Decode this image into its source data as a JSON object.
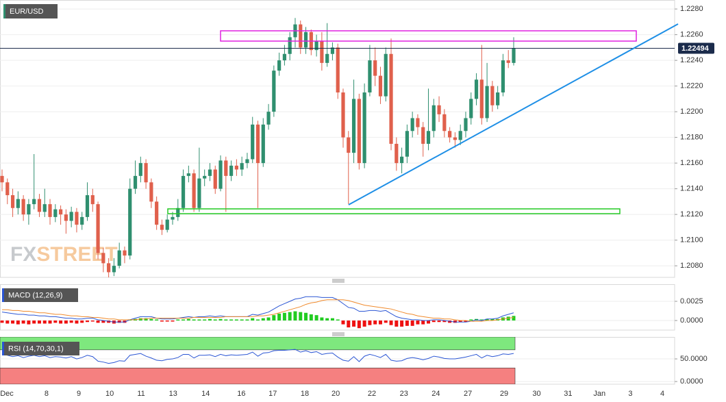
{
  "chart_data": [
    {
      "type": "candlestick",
      "title": "EUR/USD",
      "open": [
        1.215,
        1.2145,
        1.2135,
        1.2125,
        1.2132,
        1.212,
        1.2128,
        1.2132,
        1.2122,
        1.2128,
        1.2118,
        1.2124,
        1.212,
        1.2115,
        1.2122,
        1.2112,
        1.2118,
        1.2135,
        1.2128,
        1.209,
        1.2082,
        1.2075,
        1.208,
        1.2092,
        1.2088,
        1.214,
        1.215,
        1.216,
        1.2145,
        1.213,
        1.2112,
        1.2108,
        1.2116,
        1.2118,
        1.2125,
        1.215,
        1.2152,
        1.2125,
        1.2148,
        1.215,
        1.2155,
        1.214,
        1.2162,
        1.215,
        1.2158,
        1.2155,
        1.216,
        1.2163,
        1.219,
        1.216,
        1.219,
        1.22,
        1.2232,
        1.224,
        1.2245,
        1.2258,
        1.2268,
        1.225,
        1.2262,
        1.2248,
        1.2255,
        1.2238,
        1.2245,
        1.225,
        1.2215,
        1.218,
        1.2168,
        1.221,
        1.216,
        1.2215,
        1.224,
        1.2228,
        1.2212,
        1.2245,
        1.2175,
        1.216,
        1.2165,
        1.2185,
        1.2195,
        1.2188,
        1.2175,
        1.2185,
        1.2205,
        1.2198,
        1.2185,
        1.218,
        1.2178,
        1.2185,
        1.2195,
        1.221,
        1.2225,
        1.2195,
        1.222,
        1.2205,
        1.2215,
        1.224,
        1.2238
      ],
      "high": [
        1.2155,
        1.2148,
        1.214,
        1.2138,
        1.2135,
        1.2132,
        1.2167,
        1.2136,
        1.214,
        1.2132,
        1.2128,
        1.2127,
        1.2124,
        1.2126,
        1.2125,
        1.2122,
        1.2145,
        1.214,
        1.213,
        1.2094,
        1.2086,
        1.2086,
        1.2098,
        1.2095,
        1.2148,
        1.2162,
        1.2165,
        1.2163,
        1.2148,
        1.2134,
        1.2116,
        1.212,
        1.2122,
        1.2132,
        1.2155,
        1.2158,
        1.2155,
        1.2172,
        1.2155,
        1.216,
        1.2158,
        1.2166,
        1.2165,
        1.2162,
        1.2163,
        1.2165,
        1.2168,
        1.2196,
        1.2193,
        1.2195,
        1.2206,
        1.2236,
        1.2246,
        1.2252,
        1.2262,
        1.2273,
        1.2271,
        1.2266,
        1.2264,
        1.226,
        1.2262,
        1.2269,
        1.2254,
        1.2253,
        1.2218,
        1.2185,
        1.2225,
        1.2214,
        1.2222,
        1.2252,
        1.225,
        1.2235,
        1.225,
        1.2257,
        1.218,
        1.2172,
        1.219,
        1.22,
        1.2198,
        1.2192,
        1.2218,
        1.221,
        1.2212,
        1.2202,
        1.2188,
        1.2184,
        1.219,
        1.22,
        1.2215,
        1.223,
        1.2252,
        1.2238,
        1.2224,
        1.222,
        1.2245,
        1.2248,
        1.2258
      ],
      "low": [
        1.2138,
        1.2128,
        1.2118,
        1.212,
        1.2115,
        1.2112,
        1.2124,
        1.2118,
        1.2118,
        1.2112,
        1.2114,
        1.2112,
        1.2105,
        1.211,
        1.2106,
        1.2108,
        1.2115,
        1.2122,
        1.2085,
        1.2075,
        1.207,
        1.2072,
        1.2078,
        1.2082,
        1.2085,
        1.2136,
        1.2145,
        1.214,
        1.2125,
        1.2108,
        1.2104,
        1.2106,
        1.2112,
        1.2115,
        1.2122,
        1.2145,
        1.2122,
        1.2122,
        1.2142,
        1.2146,
        1.2136,
        1.2138,
        1.2122,
        1.2146,
        1.215,
        1.215,
        1.2156,
        1.216,
        1.2125,
        1.2157,
        1.2186,
        1.2196,
        1.2228,
        1.2236,
        1.224,
        1.225,
        1.2245,
        1.2245,
        1.2244,
        1.2243,
        1.2232,
        1.2235,
        1.224,
        1.221,
        1.2172,
        1.2128,
        1.216,
        1.2155,
        1.2156,
        1.2212,
        1.222,
        1.2206,
        1.2208,
        1.217,
        1.2154,
        1.2152,
        1.216,
        1.218,
        1.2182,
        1.2165,
        1.217,
        1.218,
        1.2192,
        1.218,
        1.2176,
        1.2172,
        1.2174,
        1.218,
        1.219,
        1.2205,
        1.219,
        1.2192,
        1.22,
        1.2202,
        1.2212,
        1.2234,
        1.2236
      ],
      "close": [
        1.2145,
        1.2135,
        1.2125,
        1.2132,
        1.212,
        1.2128,
        1.2132,
        1.2122,
        1.2128,
        1.2118,
        1.2124,
        1.212,
        1.2115,
        1.2122,
        1.2112,
        1.2118,
        1.2135,
        1.2128,
        1.209,
        1.2082,
        1.2075,
        1.208,
        1.2092,
        1.2088,
        1.214,
        1.215,
        1.216,
        1.2145,
        1.213,
        1.2112,
        1.2108,
        1.2116,
        1.2118,
        1.2125,
        1.215,
        1.2152,
        1.2125,
        1.2148,
        1.215,
        1.2155,
        1.214,
        1.2162,
        1.215,
        1.2158,
        1.2155,
        1.216,
        1.2163,
        1.219,
        1.216,
        1.219,
        1.22,
        1.2232,
        1.224,
        1.2245,
        1.2258,
        1.2268,
        1.225,
        1.2262,
        1.2248,
        1.2255,
        1.2238,
        1.2245,
        1.225,
        1.2215,
        1.218,
        1.2168,
        1.221,
        1.216,
        1.2215,
        1.224,
        1.2228,
        1.2212,
        1.2245,
        1.2175,
        1.216,
        1.2165,
        1.2185,
        1.2195,
        1.2188,
        1.2175,
        1.2185,
        1.2205,
        1.2198,
        1.2185,
        1.218,
        1.2178,
        1.2185,
        1.2195,
        1.221,
        1.2225,
        1.2195,
        1.222,
        1.2205,
        1.2215,
        1.224,
        1.2238,
        1.22494
      ],
      "up_color": "#2f8f6f",
      "down_color": "#e0604c",
      "ylim": [
        1.2071,
        1.2287
      ],
      "yticks": [
        {
          "value": 1.208,
          "label": "1.2080"
        },
        {
          "value": 1.21,
          "label": "1.2100"
        },
        {
          "value": 1.212,
          "label": "1.2120"
        },
        {
          "value": 1.214,
          "label": "1.2140"
        },
        {
          "value": 1.216,
          "label": "1.2160"
        },
        {
          "value": 1.218,
          "label": "1.2180"
        },
        {
          "value": 1.22,
          "label": "1.2200"
        },
        {
          "value": 1.222,
          "label": "1.2220"
        },
        {
          "value": 1.224,
          "label": "1.2240"
        },
        {
          "value": 1.226,
          "label": "1.2260"
        },
        {
          "value": 1.228,
          "label": "1.2280"
        }
      ],
      "xlim": [
        -0.386,
        126.2
      ],
      "xticks": [
        {
          "value": 0.9,
          "label": "Dec"
        },
        {
          "value": 8.35,
          "label": "8"
        },
        {
          "value": 14.4,
          "label": "9"
        },
        {
          "value": 20.2,
          "label": "10"
        },
        {
          "value": 26.1,
          "label": "11"
        },
        {
          "value": 32.1,
          "label": "13"
        },
        {
          "value": 38.2,
          "label": "14"
        },
        {
          "value": 44.9,
          "label": "16"
        },
        {
          "value": 50.8,
          "label": "17"
        },
        {
          "value": 56.8,
          "label": "18"
        },
        {
          "value": 62.6,
          "label": "20"
        },
        {
          "value": 69.4,
          "label": "22"
        },
        {
          "value": 75.4,
          "label": "23"
        },
        {
          "value": 81.4,
          "label": "24"
        },
        {
          "value": 87.4,
          "label": "27"
        },
        {
          "value": 94.2,
          "label": "29"
        },
        {
          "value": 100.3,
          "label": "30"
        },
        {
          "value": 106.2,
          "label": "31"
        },
        {
          "value": 112.1,
          "label": "Jan"
        },
        {
          "value": 117.9,
          "label": "3"
        },
        {
          "value": 123.9,
          "label": "4"
        }
      ],
      "last_price": 1.22494,
      "watermark": [
        "FX",
        "STREET"
      ],
      "grid": true
    },
    {
      "type": "macd",
      "title": "MACD (12,26,9)",
      "series": [
        {
          "color": "#2a55d4",
          "values": [
            0.0011,
            0.001,
            0.0009,
            0.0008,
            0.0008,
            0.0007,
            0.0007,
            0.0006,
            0.0006,
            0.0005,
            0.0005,
            0.0004,
            0.0003,
            0.0003,
            0.0002,
            0.0002,
            0.0003,
            0.0003,
            0.0001,
            0.0,
            -0.0001,
            -0.0002,
            -0.0002,
            -0.0002,
            0.0001,
            0.0003,
            0.0005,
            0.0005,
            0.0005,
            0.0003,
            0.0002,
            0.0002,
            0.0002,
            0.0003,
            0.0004,
            0.0005,
            0.0004,
            0.0005,
            0.0005,
            0.0006,
            0.0005,
            0.0006,
            0.0005,
            0.0005,
            0.0005,
            0.0005,
            0.0005,
            0.0008,
            0.0007,
            0.0009,
            0.0011,
            0.0015,
            0.0019,
            0.0022,
            0.0025,
            0.0028,
            0.0029,
            0.0031,
            0.0031,
            0.0031,
            0.003,
            0.003,
            0.003,
            0.0027,
            0.0022,
            0.0017,
            0.0016,
            0.0012,
            0.0012,
            0.0013,
            0.0013,
            0.0012,
            0.0013,
            0.0009,
            0.0005,
            0.0003,
            0.0002,
            0.0001,
            0.0001,
            0.0,
            0.0,
            0.0001,
            0.0001,
            0.0,
            -0.0001,
            -0.0002,
            -0.0002,
            -0.0002,
            -0.0001,
            0.0001,
            0.0,
            0.0002,
            0.0002,
            0.0003,
            0.0006,
            0.0008,
            0.001
          ]
        },
        {
          "color": "#f08a2c",
          "values": [
            0.0014,
            0.0014,
            0.0013,
            0.0013,
            0.0012,
            0.0012,
            0.0011,
            0.001,
            0.001,
            0.0009,
            0.0008,
            0.0008,
            0.0007,
            0.0006,
            0.0006,
            0.0005,
            0.0005,
            0.0004,
            0.0004,
            0.0003,
            0.0002,
            0.0002,
            0.0001,
            0.0001,
            0.0001,
            0.0001,
            0.0002,
            0.0002,
            0.0003,
            0.0003,
            0.0003,
            0.0003,
            0.0003,
            0.0003,
            0.0003,
            0.0003,
            0.0004,
            0.0004,
            0.0004,
            0.0004,
            0.0004,
            0.0004,
            0.0005,
            0.0005,
            0.0005,
            0.0005,
            0.0005,
            0.0005,
            0.0006,
            0.0006,
            0.0007,
            0.0008,
            0.001,
            0.0012,
            0.0014,
            0.0016,
            0.0018,
            0.0021,
            0.0023,
            0.0024,
            0.0026,
            0.0027,
            0.0027,
            0.0027,
            0.0027,
            0.0026,
            0.0024,
            0.0022,
            0.002,
            0.0019,
            0.0018,
            0.0017,
            0.0016,
            0.0015,
            0.0013,
            0.0011,
            0.0009,
            0.0008,
            0.0006,
            0.0005,
            0.0004,
            0.0003,
            0.0003,
            0.0002,
            0.0002,
            0.0001,
            0.0,
            0.0,
            -0.0001,
            -0.0001,
            -0.0001,
            0.0,
            0.0,
            0.0001,
            0.0002,
            0.0003,
            0.0004
          ]
        }
      ],
      "histogram": {
        "up_color": "#22cc22",
        "down_color": "#ee1111",
        "values": [
          -0.0003,
          -0.0004,
          -0.0004,
          -0.0005,
          -0.0004,
          -0.0005,
          -0.0004,
          -0.0004,
          -0.0004,
          -0.0004,
          -0.0003,
          -0.0004,
          -0.0004,
          -0.0003,
          -0.0004,
          -0.0003,
          -0.0002,
          -0.0001,
          -0.0003,
          -0.0003,
          -0.0003,
          -0.0004,
          -0.0003,
          -0.0003,
          0.0,
          0.0002,
          0.0003,
          0.0003,
          0.0002,
          0.0,
          -0.0001,
          -0.0001,
          -0.0001,
          0.0,
          0.0001,
          0.0002,
          0.0,
          0.0001,
          0.0001,
          0.0002,
          0.0001,
          0.0002,
          0.0,
          0.0,
          0.0,
          0.0,
          0.0,
          0.0003,
          0.0001,
          0.0003,
          0.0004,
          0.0007,
          0.0009,
          0.001,
          0.0011,
          0.0012,
          0.0011,
          0.001,
          0.0008,
          0.0007,
          0.0004,
          0.0003,
          0.0003,
          0.0,
          -0.0005,
          -0.0009,
          -0.0008,
          -0.001,
          -0.0008,
          -0.0006,
          -0.0005,
          -0.0005,
          -0.0003,
          -0.0006,
          -0.0008,
          -0.0008,
          -0.0007,
          -0.0007,
          -0.0005,
          -0.0005,
          -0.0004,
          -0.0002,
          -0.0002,
          -0.0002,
          -0.0003,
          -0.0003,
          -0.0002,
          -0.0002,
          0.0,
          0.0002,
          0.0001,
          0.0002,
          0.0002,
          0.0002,
          0.0004,
          0.0005,
          0.0006
        ]
      },
      "ylim": [
        -0.00125,
        0.00473
      ],
      "yticks": [
        {
          "value": 0,
          "label": "0.0000"
        },
        0.0025
      ]
    },
    {
      "type": "rsi",
      "title": "RSI (14,70,30,1)",
      "color": "#2a55d4",
      "values": [
        62,
        58,
        55,
        57,
        53,
        56,
        58,
        55,
        57,
        53,
        55,
        54,
        52,
        55,
        50,
        53,
        58,
        55,
        45,
        43,
        40,
        42,
        46,
        45,
        58,
        60,
        62,
        56,
        52,
        47,
        46,
        49,
        50,
        53,
        60,
        60,
        52,
        58,
        58,
        59,
        55,
        60,
        57,
        59,
        58,
        59,
        60,
        65,
        56,
        63,
        64,
        68,
        69,
        69,
        70,
        71,
        65,
        68,
        64,
        66,
        60,
        62,
        63,
        54,
        47,
        45,
        55,
        44,
        56,
        60,
        57,
        53,
        60,
        47,
        45,
        46,
        51,
        53,
        51,
        48,
        51,
        56,
        54,
        51,
        50,
        50,
        52,
        54,
        57,
        60,
        52,
        58,
        55,
        57,
        61,
        60,
        62
      ],
      "overbought": 70,
      "oversold": 30,
      "overbought_color": "#7ee87e",
      "oversold_color": "#f58080",
      "ylim": [
        -5.9,
        98.5
      ],
      "yticks": [
        {
          "value": 0,
          "label": "0.0000"
        },
        {
          "value": 50,
          "label": "50.0000"
        }
      ]
    }
  ]
}
